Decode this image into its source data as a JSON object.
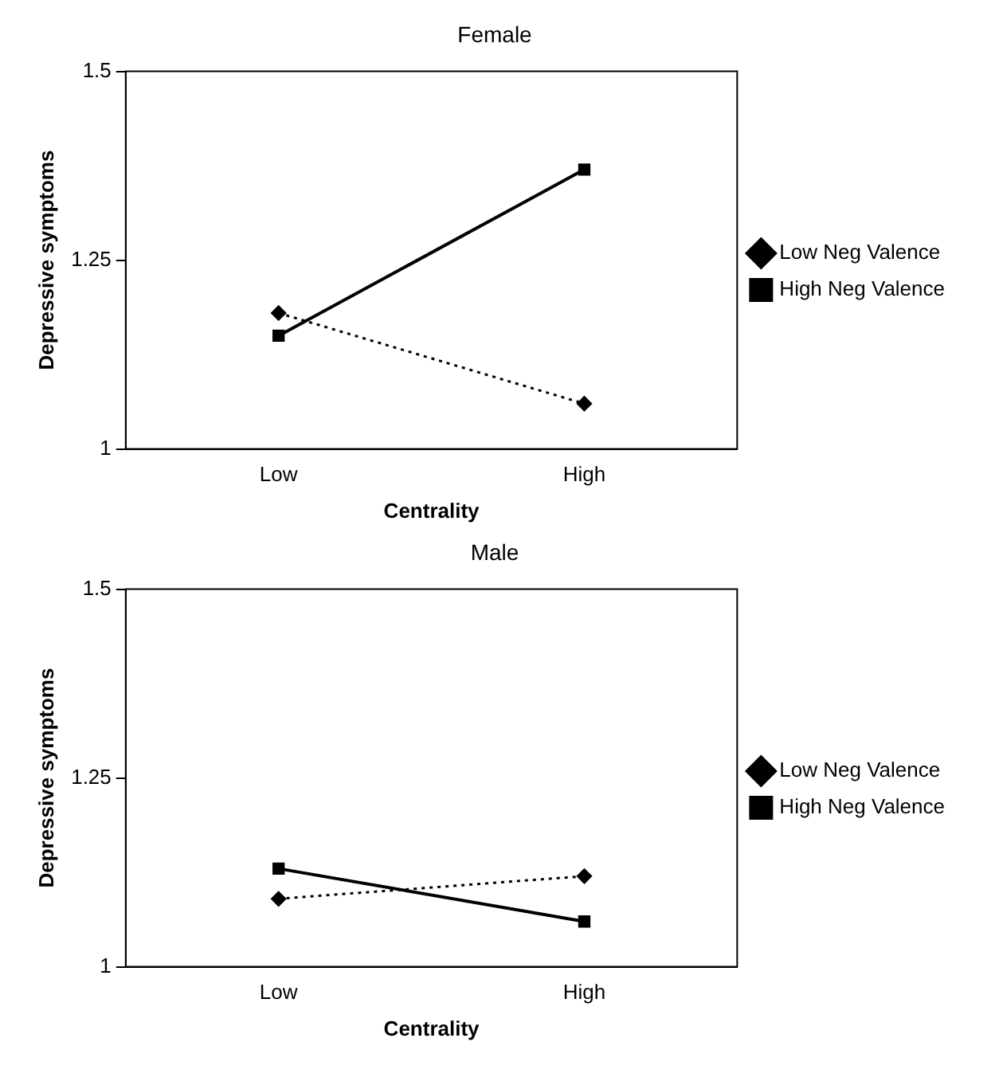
{
  "chart_data": [
    {
      "type": "line",
      "title": "Female",
      "xlabel": "Centrality",
      "ylabel": "Depressive symptoms",
      "categories": [
        "Low",
        "High"
      ],
      "ylim": [
        1,
        1.5
      ],
      "yticks": [
        1,
        1.25,
        1.5
      ],
      "grid": false,
      "legend": "right",
      "series": [
        {
          "name": "Low Neg Valence",
          "color": "#000000",
          "values": [
            1.18,
            1.06
          ],
          "marker": "diamond",
          "line_style": "dotted"
        },
        {
          "name": "High Neg Valence",
          "color": "#000000",
          "values": [
            1.15,
            1.37
          ],
          "marker": "square",
          "line_style": "solid"
        }
      ]
    },
    {
      "type": "line",
      "title": "Male",
      "xlabel": "Centrality",
      "ylabel": "Depressive symptoms",
      "categories": [
        "Low",
        "High"
      ],
      "ylim": [
        1,
        1.5
      ],
      "yticks": [
        1,
        1.25,
        1.5
      ],
      "grid": false,
      "legend": "right",
      "series": [
        {
          "name": "Low Neg Valence",
          "color": "#000000",
          "values": [
            1.09,
            1.12
          ],
          "marker": "diamond",
          "line_style": "dotted"
        },
        {
          "name": "High Neg Valence",
          "color": "#000000",
          "values": [
            1.13,
            1.06
          ],
          "marker": "square",
          "line_style": "solid"
        }
      ]
    }
  ]
}
